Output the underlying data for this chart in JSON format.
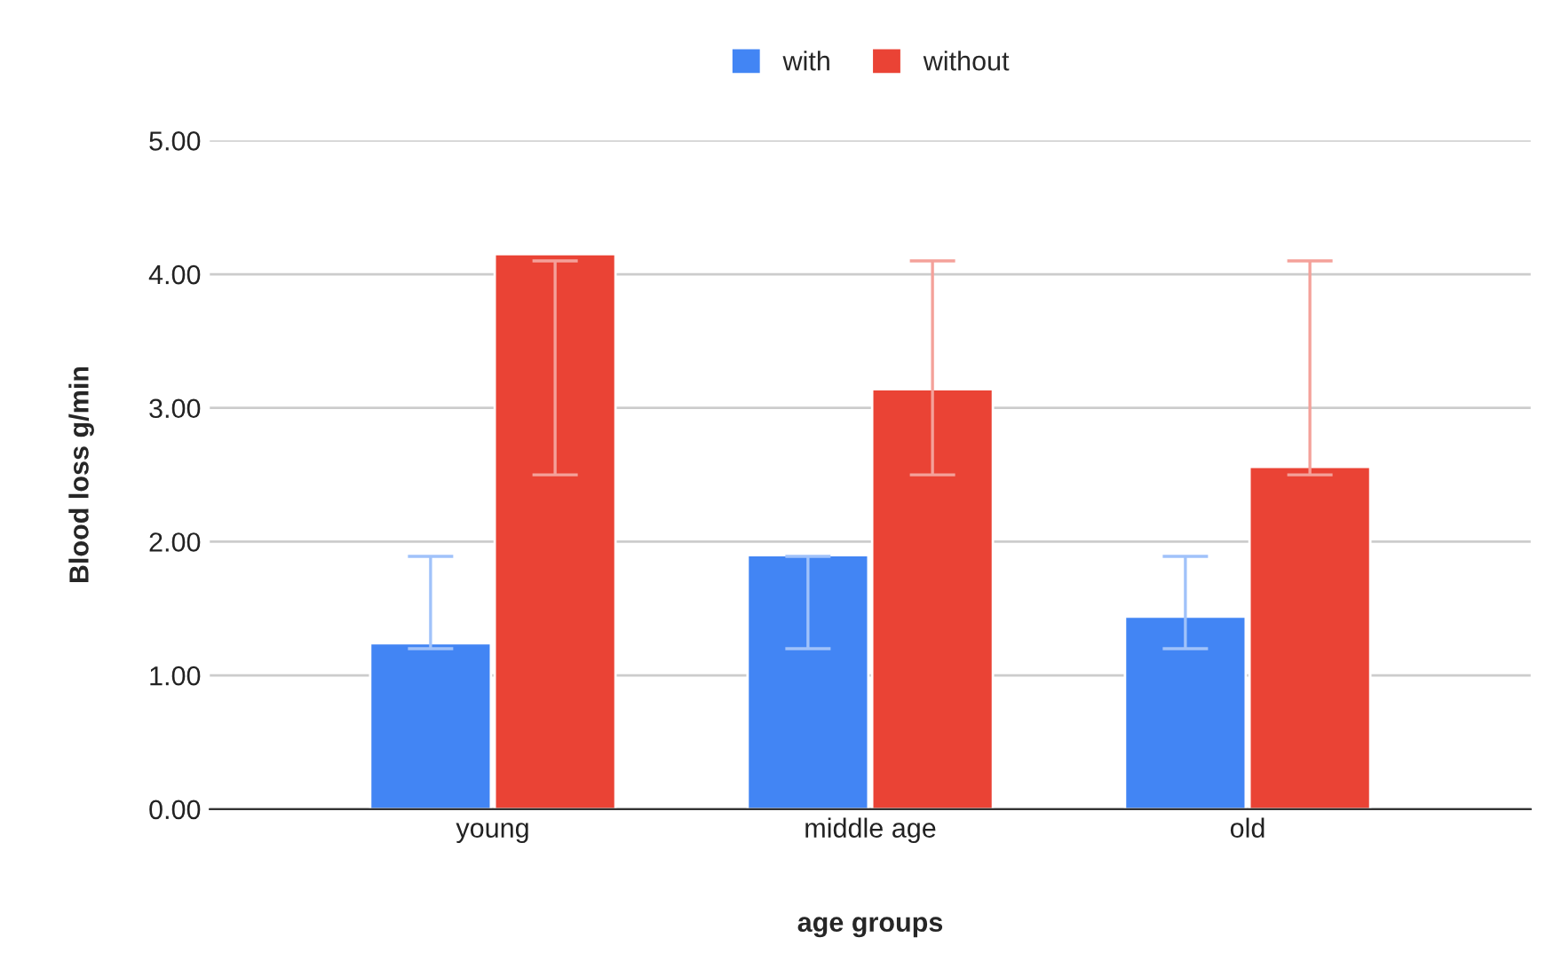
{
  "chart_data": {
    "type": "bar",
    "xlabel": "age groups",
    "ylabel": "Blood loss g/min",
    "categories": [
      "young",
      "middle age",
      "old"
    ],
    "series": [
      {
        "name": "with",
        "color": "#4285f4",
        "values": [
          1.24,
          1.9,
          1.44
        ],
        "errors": [
          [
            1.2,
            1.89
          ],
          [
            1.2,
            1.89
          ],
          [
            1.2,
            1.89
          ]
        ]
      },
      {
        "name": "without",
        "color": "#ea4335",
        "values": [
          4.15,
          3.14,
          2.56
        ],
        "errors": [
          [
            2.5,
            4.1
          ],
          [
            2.5,
            4.1
          ],
          [
            2.5,
            4.1
          ]
        ]
      }
    ],
    "ylim": [
      0,
      5
    ],
    "yticks": [
      {
        "value": 0,
        "label": "0.00"
      },
      {
        "value": 1,
        "label": "1.00"
      },
      {
        "value": 2,
        "label": "2.00"
      },
      {
        "value": 3,
        "label": "3.00"
      },
      {
        "value": 4,
        "label": "4.00"
      },
      {
        "value": 5,
        "label": "5.00"
      }
    ],
    "grid": "y",
    "legend": "top"
  }
}
